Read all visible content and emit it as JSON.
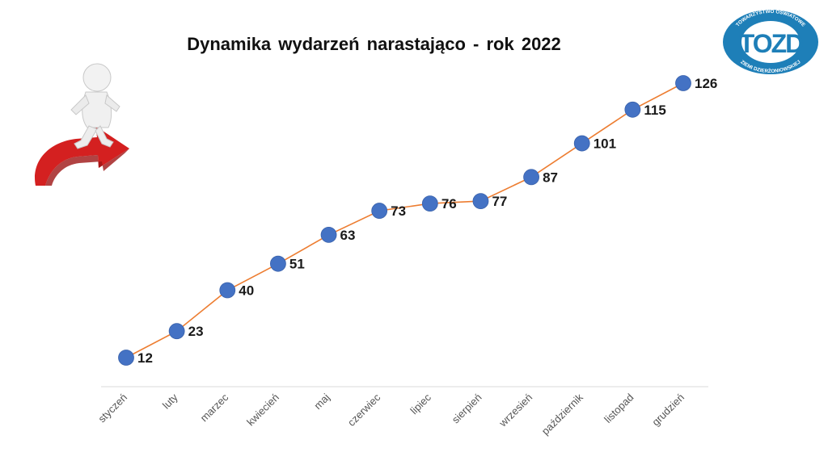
{
  "chart_data": {
    "type": "line",
    "title": "Dynamika  wydarzeń narastająco - rok 2022",
    "categories": [
      "styczeń",
      "luty",
      "marzec",
      "kwiecień",
      "maj",
      "czerwiec",
      "lipiec",
      "sierpień",
      "wrzesień",
      "październik",
      "listopad",
      "grudzień"
    ],
    "series": [
      {
        "values": [
          12,
          23,
          40,
          51,
          63,
          73,
          76,
          77,
          87,
          101,
          115,
          126
        ]
      }
    ],
    "xlabel": "",
    "ylabel": "",
    "ylim": [
      0,
      135
    ],
    "grid": false,
    "legend": "none",
    "colors": {
      "marker": "#4472C4",
      "line": "#ED7D31",
      "axis": "#D9D9D9"
    }
  },
  "logo": {
    "text_top": "TOWARZYSTWO OŚWIATOWE",
    "text_bottom": "ZIEMI DZIERŻONIOWSKIEJ",
    "monogram": "TOZD",
    "color": "#1E7FB8"
  },
  "decoration": {
    "arrow_color": "#D42020",
    "figure": "white-3d-man-icon"
  }
}
